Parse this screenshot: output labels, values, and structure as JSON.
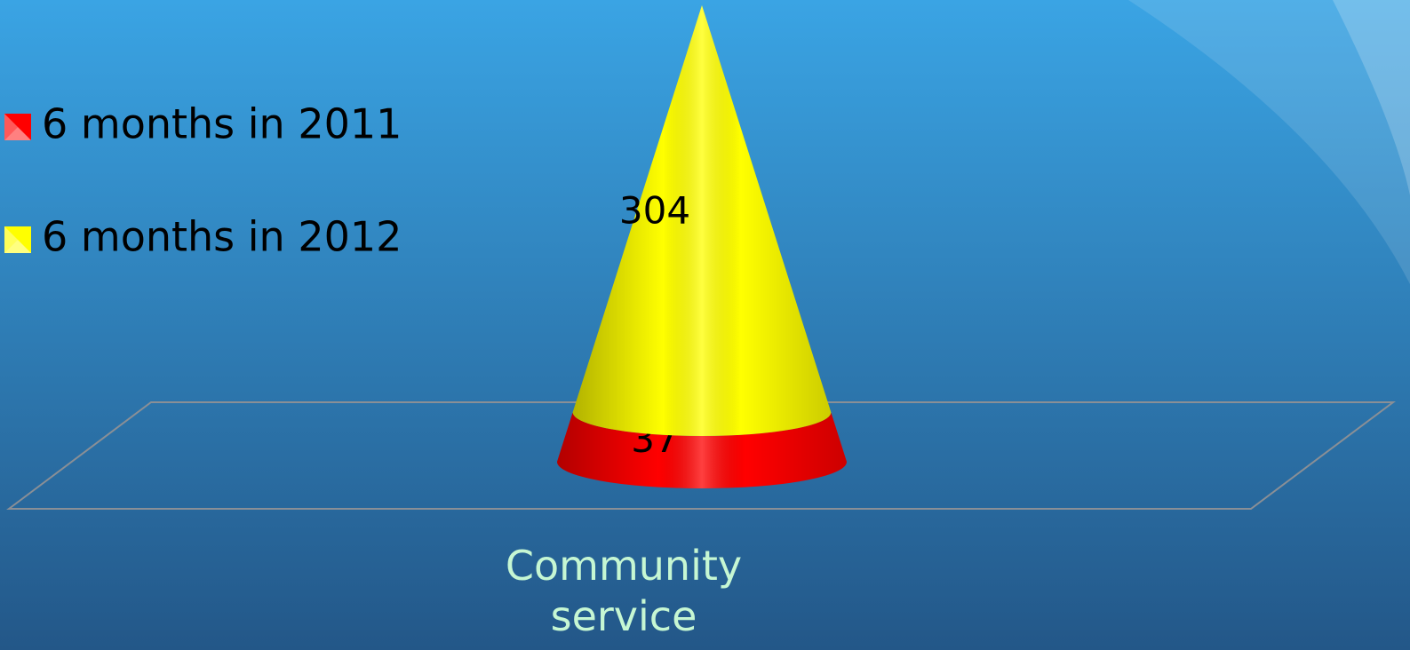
{
  "chart_data": {
    "type": "cone",
    "categories": [
      "Community service"
    ],
    "series": [
      {
        "name": "6 months in 2011",
        "color": "#ff0000",
        "values": [
          37
        ]
      },
      {
        "name": "6 months in 2012",
        "color": "#ffff00",
        "values": [
          304
        ]
      }
    ],
    "stacked": true,
    "legend": "left"
  }
}
